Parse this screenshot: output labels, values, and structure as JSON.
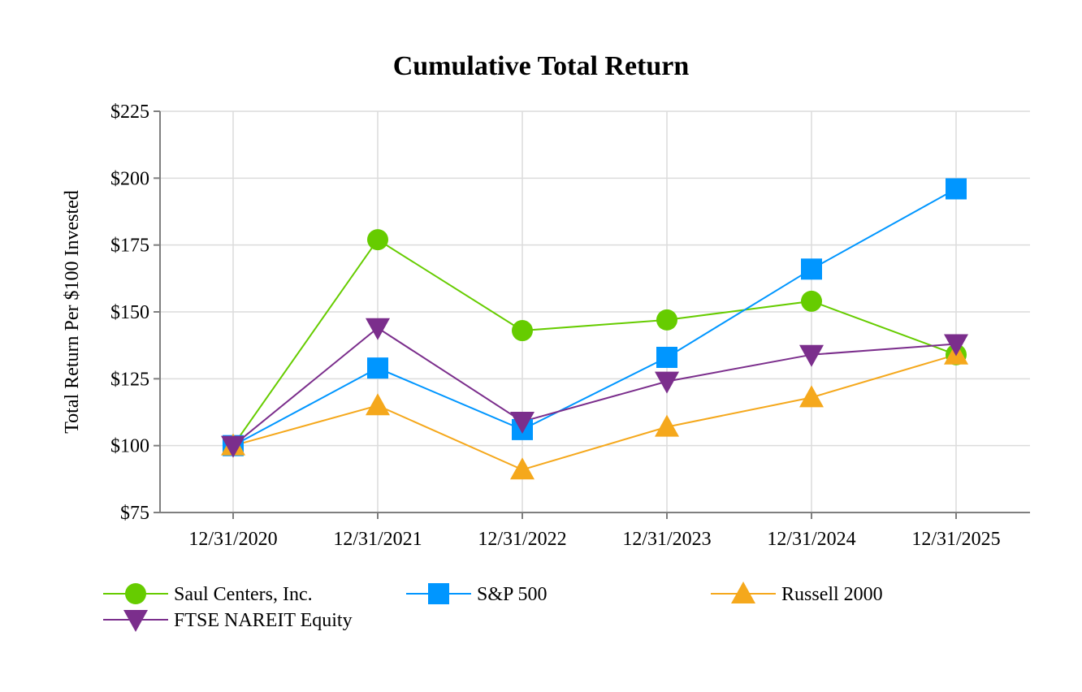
{
  "chart_data": {
    "type": "line",
    "title": "Cumulative Total Return",
    "xlabel": "",
    "ylabel": "Total Return Per $100 Invested",
    "categories": [
      "12/31/2020",
      "12/31/2021",
      "12/31/2022",
      "12/31/2023",
      "12/31/2024",
      "12/31/2025"
    ],
    "ylim": [
      75,
      225
    ],
    "yticks": [
      75,
      100,
      125,
      150,
      175,
      200,
      225
    ],
    "ytick_labels": [
      "$75",
      "$100",
      "$125",
      "$150",
      "$175",
      "$200",
      "$225"
    ],
    "grid": true,
    "legend_position": "bottom",
    "series": [
      {
        "name": "Saul Centers, Inc.",
        "marker": "circle",
        "color": "#66cc00",
        "values": [
          100,
          177,
          143,
          147,
          154,
          134
        ]
      },
      {
        "name": "S&P 500",
        "marker": "square",
        "color": "#0096ff",
        "values": [
          100,
          129,
          106,
          133,
          166,
          196
        ]
      },
      {
        "name": "Russell 2000",
        "marker": "triangle-up",
        "color": "#f5a81c",
        "values": [
          100,
          115,
          91,
          107,
          118,
          134
        ]
      },
      {
        "name": "FTSE NAREIT Equity",
        "marker": "triangle-down",
        "color": "#7b2e8c",
        "values": [
          100,
          144,
          109,
          124,
          134,
          138
        ]
      }
    ]
  }
}
